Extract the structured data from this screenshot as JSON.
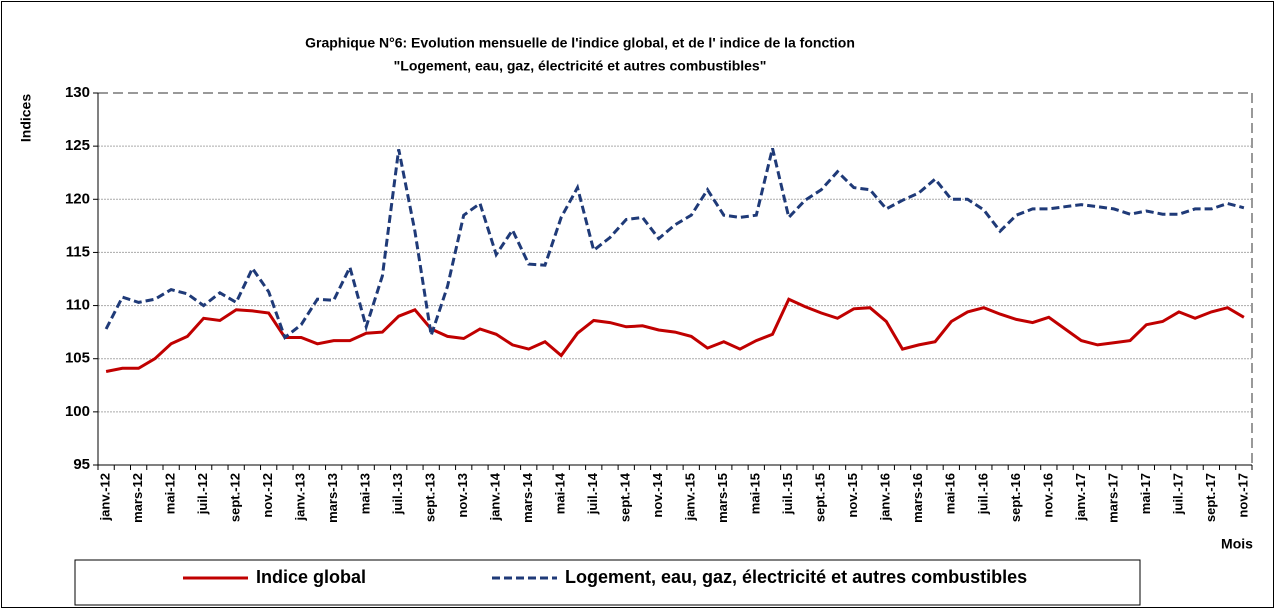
{
  "chart_data": {
    "type": "line",
    "title": [
      "Graphique N°6: Evolution  mensuelle de l'indice global,  et de l' indice de la  fonction",
      "\"Logement, eau, gaz, électricité et autres combustibles\""
    ],
    "y_label": "Indices",
    "x_label": "Mois",
    "categories": [
      "janv.-12",
      null,
      "mars-12",
      null,
      "mai-12",
      null,
      "juil.-12",
      null,
      "sept.-12",
      null,
      "nov.-12",
      null,
      "janv.-13",
      null,
      "mars-13",
      null,
      "mai-13",
      null,
      "juil.-13",
      null,
      "sept.-13",
      null,
      "nov.-13",
      null,
      "janv.-14",
      null,
      "mars-14",
      null,
      "mai-14",
      null,
      "juil.-14",
      null,
      "sept.-14",
      null,
      "nov.-14",
      null,
      "janv.-15",
      null,
      "mars-15",
      null,
      "mai-15",
      null,
      "juil.-15",
      null,
      "sept.-15",
      null,
      "nov.-15",
      null,
      "janv.-16",
      null,
      "mars-16",
      null,
      "mai-16",
      null,
      "juil.-16",
      null,
      "sept.-16",
      null,
      "nov.-16",
      null,
      "janv.-17",
      null,
      "mars-17",
      null,
      "mai-17",
      null,
      "juil.-17",
      null,
      "sept.-17",
      null,
      "nov.-17"
    ],
    "series": [
      {
        "name": "Indice global",
        "color": "#c00000",
        "dash": false,
        "values": [
          103.8,
          104.1,
          104.1,
          105.0,
          106.4,
          107.1,
          108.8,
          108.6,
          109.6,
          109.5,
          109.3,
          107.0,
          107.0,
          106.4,
          106.7,
          106.7,
          107.4,
          107.5,
          109.0,
          109.6,
          107.8,
          107.1,
          106.9,
          107.8,
          107.3,
          106.3,
          105.9,
          106.6,
          105.3,
          107.4,
          108.6,
          108.4,
          108.0,
          108.1,
          107.7,
          107.5,
          107.1,
          106.0,
          106.6,
          105.9,
          106.7,
          107.3,
          110.6,
          109.9,
          109.3,
          108.8,
          109.7,
          109.8,
          108.5,
          105.9,
          106.3,
          106.6,
          108.5,
          109.4,
          109.8,
          109.2,
          108.7,
          108.4,
          108.9,
          107.8,
          106.7,
          106.3,
          106.5,
          106.7,
          108.2,
          108.5,
          109.4,
          108.8,
          109.4,
          109.8,
          108.9
        ]
      },
      {
        "name": "Logement, eau, gaz, électricité et autres combustibles",
        "color": "#1f3a78",
        "dash": true,
        "values": [
          107.8,
          110.8,
          110.3,
          110.6,
          111.5,
          111.1,
          110.0,
          111.2,
          110.3,
          113.5,
          111.3,
          107.0,
          108.2,
          110.6,
          110.5,
          113.6,
          108.0,
          112.8,
          124.7,
          117.0,
          107.2,
          111.8,
          118.5,
          119.6,
          114.8,
          117.1,
          113.9,
          113.8,
          118.3,
          121.1,
          115.2,
          116.4,
          118.1,
          118.3,
          116.3,
          117.6,
          118.5,
          120.9,
          118.5,
          118.3,
          118.5,
          124.8,
          118.3,
          119.9,
          120.9,
          122.6,
          121.1,
          120.9,
          119.1,
          119.9,
          120.6,
          121.9,
          120.0,
          120.0,
          119.0,
          117.0,
          118.5,
          119.1,
          119.1,
          119.3,
          119.5,
          119.3,
          119.1,
          118.6,
          118.9,
          118.6,
          118.6,
          119.1,
          119.1,
          119.6,
          119.2
        ]
      }
    ],
    "ylim": [
      95,
      130
    ],
    "yticks": [
      95,
      100,
      105,
      110,
      115,
      120,
      125,
      130
    ],
    "grid": true,
    "legend": "bottom"
  }
}
